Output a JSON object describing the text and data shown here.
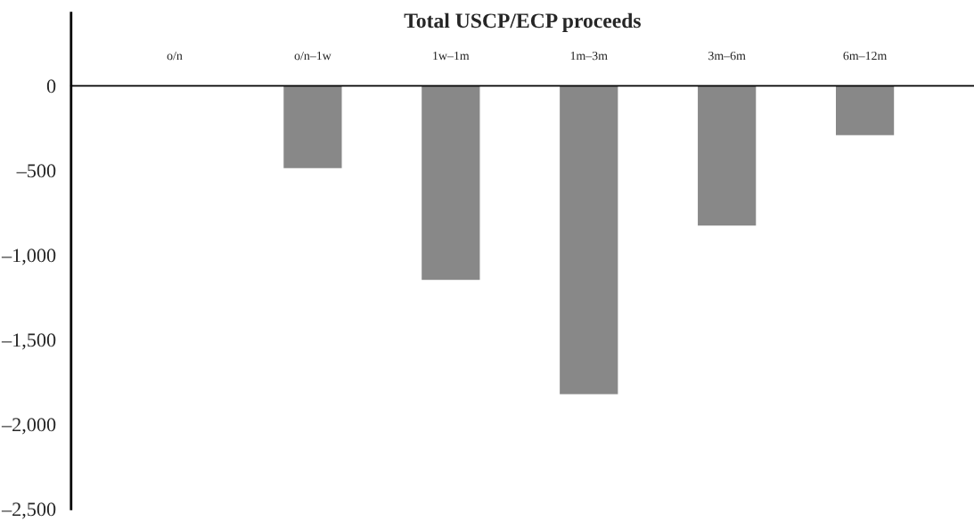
{
  "chart_data": {
    "type": "bar",
    "title": "Total USCP/ECP proceeds",
    "categories": [
      "o/n",
      "o/n–1w",
      "1w–1m",
      "1m–3m",
      "3m–6m",
      "6m–12m"
    ],
    "values": [
      null,
      -490,
      -1150,
      -1825,
      -830,
      -295
    ],
    "color": "#888888",
    "ylim": [
      -2500,
      430
    ],
    "yticks": [
      0,
      {
        "value": -500,
        "label": "–500"
      },
      {
        "value": -1000,
        "label": "–1,000"
      },
      {
        "value": -1500,
        "label": "–1,500"
      },
      {
        "value": -2000,
        "label": "–2,000"
      },
      {
        "value": -2500,
        "label": "–2,500"
      }
    ],
    "grid": false,
    "legend": false
  }
}
